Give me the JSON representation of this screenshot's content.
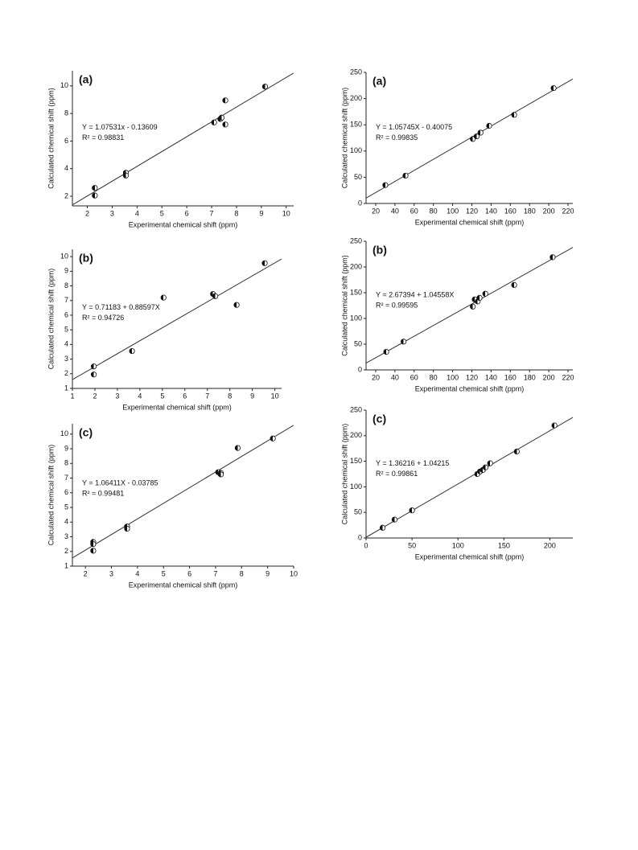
{
  "chart_data": [
    {
      "type": "scatter",
      "label": "(a)",
      "equation": "Y = 1.07531x - 0.13609",
      "r2": "R² = 0.98831",
      "xlabel": "Experimental chemical shift (ppm)",
      "ylabel": "Calculated chemical shift (ppm)",
      "x": [
        2.3,
        2.3,
        3.55,
        3.55,
        7.1,
        7.35,
        7.4,
        7.55,
        7.55,
        9.15
      ],
      "values": [
        2.6,
        2.05,
        3.7,
        3.5,
        7.35,
        7.6,
        7.7,
        8.95,
        7.2,
        9.95
      ],
      "fit": {
        "slope": 1.07531,
        "intercept": -0.13609
      },
      "xlim": [
        1.4,
        10.3
      ],
      "ylim": [
        1.3,
        11.1
      ],
      "xticks": [
        2,
        3,
        4,
        5,
        6,
        7,
        8,
        9,
        10
      ],
      "yticks": [
        2,
        4,
        6,
        8,
        10
      ]
    },
    {
      "type": "scatter",
      "label": "(a)",
      "equation": "Y = 1.05745X - 0.40075",
      "r2": "R² = 0.99835",
      "xlabel": "Experimental chemical shift (ppm)",
      "ylabel": "Calculated chemical shift (ppm)",
      "x": [
        30,
        51,
        121,
        125,
        129,
        138,
        164,
        205
      ],
      "values": [
        35,
        53,
        123,
        128,
        135,
        148,
        169,
        220
      ],
      "fit": {
        "slope": 1.05745,
        "intercept": -0.40075
      },
      "xlim": [
        10,
        225
      ],
      "ylim": [
        0,
        250
      ],
      "xticks": [
        20,
        40,
        60,
        80,
        100,
        120,
        140,
        160,
        180,
        200,
        220
      ],
      "yticks": [
        0,
        50,
        100,
        150,
        200,
        250
      ]
    },
    {
      "type": "scatter",
      "label": "(b)",
      "equation": "Y = 0.71183 + 0.88597X",
      "r2": "R² = 0.94726",
      "xlabel": "Experimental chemical shift (ppm)",
      "ylabel": "Calculated chemical shift (ppm)",
      "x": [
        1.95,
        1.95,
        3.65,
        5.05,
        7.25,
        7.35,
        8.3,
        9.55
      ],
      "values": [
        2.5,
        1.95,
        3.55,
        7.2,
        7.45,
        7.3,
        6.7,
        9.55
      ],
      "fit": {
        "slope": 0.88597,
        "intercept": 0.71183
      },
      "xlim": [
        1,
        10.3
      ],
      "ylim": [
        1,
        10.5
      ],
      "xticks": [
        1,
        2,
        3,
        4,
        5,
        6,
        7,
        8,
        9,
        10
      ],
      "yticks": [
        1,
        2,
        3,
        4,
        5,
        6,
        7,
        8,
        9,
        10
      ]
    },
    {
      "type": "scatter",
      "label": "(b)",
      "equation": "Y = 2.67394 + 1.04558X",
      "r2": "R² = 0.99595",
      "xlabel": "Experimental chemical shift (ppm)",
      "ylabel": "Calculated chemical shift (ppm)",
      "x": [
        31,
        49,
        121,
        123,
        126,
        128,
        134,
        164,
        204
      ],
      "values": [
        35,
        55,
        123,
        137,
        133,
        140,
        148,
        165,
        219
      ],
      "fit": {
        "slope": 1.04558,
        "intercept": 2.67394
      },
      "xlim": [
        10,
        225
      ],
      "ylim": [
        0,
        250
      ],
      "xticks": [
        20,
        40,
        60,
        80,
        100,
        120,
        140,
        160,
        180,
        200,
        220
      ],
      "yticks": [
        0,
        50,
        100,
        150,
        200,
        250
      ]
    },
    {
      "type": "scatter",
      "label": "(c)",
      "equation": "Y = 1.06411X - 0.03785",
      "r2": "R² = 0.99481",
      "xlabel": "Experimental chemical shift (ppm)",
      "ylabel": "Calculated chemical shift (ppm)",
      "x": [
        2.3,
        2.3,
        2.3,
        3.6,
        3.6,
        7.1,
        7.2,
        7.2,
        7.85,
        9.2
      ],
      "values": [
        2.65,
        2.5,
        2.05,
        3.7,
        3.55,
        7.4,
        7.35,
        7.25,
        9.05,
        9.7
      ],
      "fit": {
        "slope": 1.06411,
        "intercept": -0.03785
      },
      "xlim": [
        1.5,
        10
      ],
      "ylim": [
        1,
        10.7
      ],
      "xticks": [
        2,
        3,
        4,
        5,
        6,
        7,
        8,
        9,
        10
      ],
      "yticks": [
        1,
        2,
        3,
        4,
        5,
        6,
        7,
        8,
        9,
        10
      ]
    },
    {
      "type": "scatter",
      "label": "(c)",
      "equation": "Y = 1.36216 + 1.04215",
      "r2": "R² = 0.99861",
      "xlabel": "Experimental chemical shift (ppm)",
      "ylabel": "Calculated chemical shift (ppm)",
      "x": [
        18,
        31,
        50,
        121,
        124,
        127,
        130,
        135,
        164,
        205
      ],
      "values": [
        20,
        36,
        54,
        125,
        130,
        133,
        138,
        146,
        169,
        220
      ],
      "fit": {
        "slope": 1.04215,
        "intercept": 1.36216
      },
      "xlim": [
        0,
        225
      ],
      "ylim": [
        0,
        250
      ],
      "xticks": [
        0,
        50,
        100,
        150,
        200
      ],
      "yticks": [
        0,
        50,
        100,
        150,
        200,
        250
      ]
    }
  ]
}
